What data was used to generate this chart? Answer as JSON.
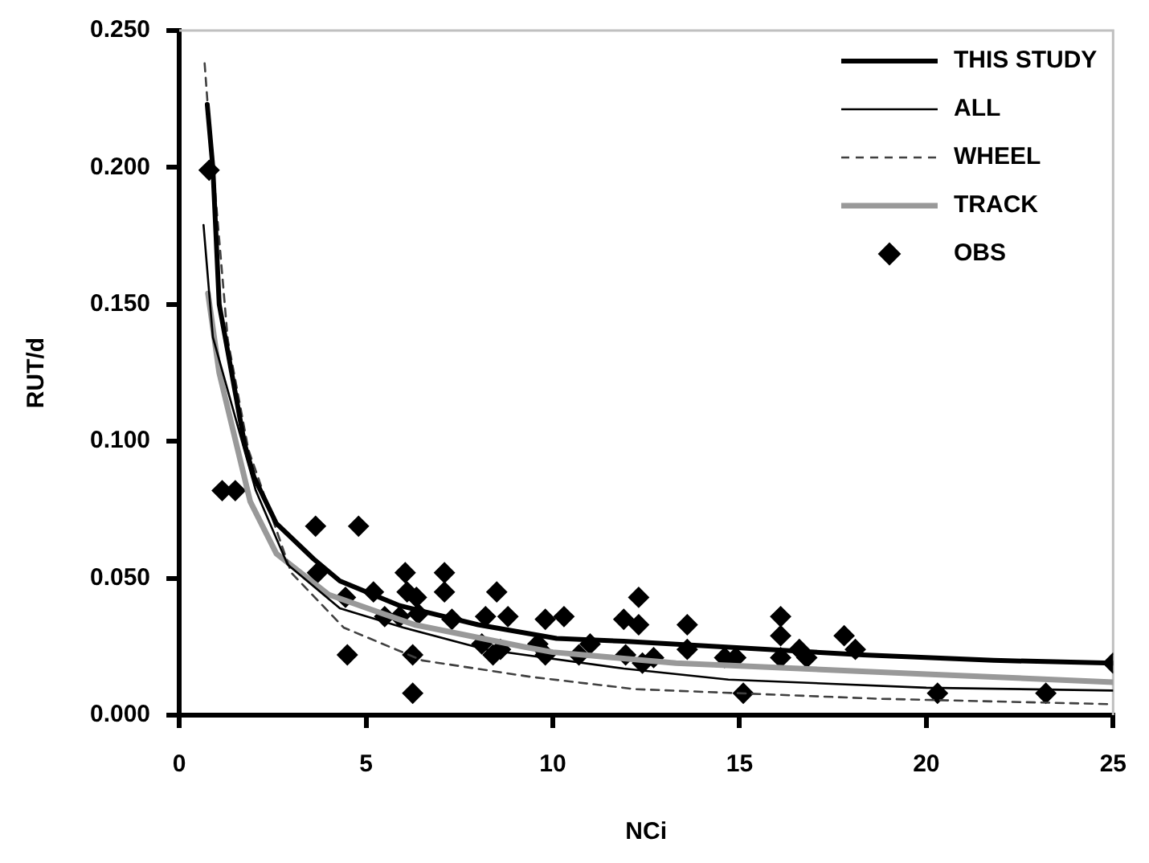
{
  "chart_data": {
    "type": "scatter",
    "xlabel": "NCi",
    "ylabel": "RUT/d",
    "xlim": [
      0,
      25
    ],
    "ylim": [
      0,
      0.25
    ],
    "xticks": [
      0,
      5,
      10,
      15,
      20,
      25
    ],
    "yticks": [
      {
        "value": 0,
        "label": "0.000"
      },
      {
        "value": 0.05,
        "label": "0.050"
      },
      {
        "value": 0.1,
        "label": "0.100"
      },
      {
        "value": 0.15,
        "label": "0.150"
      },
      {
        "value": 0.2,
        "label": "0.200"
      },
      {
        "value": 0.25,
        "label": "0.250"
      }
    ],
    "grid": false,
    "legend": "top right",
    "series": [
      {
        "name": "THIS STUDY",
        "type": "line",
        "color": "#000000",
        "marker": "none",
        "line_style": "solid",
        "x": [
          0.75,
          0.9,
          1.07,
          1.75,
          2.0,
          2.6,
          3.6,
          4.3,
          5.9,
          8.0,
          10.1,
          11.9,
          18.3,
          21.8,
          25
        ],
        "values": [
          0.223,
          0.2,
          0.15,
          0.099,
          0.087,
          0.07,
          0.057,
          0.049,
          0.04,
          0.033,
          0.028,
          0.027,
          0.022,
          0.02,
          0.019
        ]
      },
      {
        "name": "ALL",
        "type": "line",
        "color": "#000000",
        "marker": "none",
        "line_style": "solid",
        "x": [
          0.65,
          0.9,
          2.05,
          2.9,
          4.3,
          6.0,
          8.2,
          11.9,
          14.7,
          20,
          25
        ],
        "values": [
          0.179,
          0.138,
          0.082,
          0.055,
          0.039,
          0.032,
          0.024,
          0.017,
          0.013,
          0.01,
          0.009
        ]
      },
      {
        "name": "WHEEL",
        "type": "line",
        "color": "#404040",
        "marker": "none",
        "line_style": "dashed",
        "x": [
          0.68,
          0.75,
          1.3,
          1.85,
          3.0,
          4.4,
          6.5,
          9.4,
          12.2,
          18.7,
          25
        ],
        "values": [
          0.238,
          0.225,
          0.137,
          0.097,
          0.052,
          0.032,
          0.02,
          0.014,
          0.0095,
          0.006,
          0.004
        ]
      },
      {
        "name": "TRACK",
        "type": "line",
        "color": "#999999",
        "marker": "none",
        "line_style": "solid",
        "x": [
          0.77,
          1.07,
          1.9,
          2.6,
          4.0,
          6.3,
          9.2,
          10,
          13.3,
          20,
          25
        ],
        "values": [
          0.154,
          0.125,
          0.078,
          0.059,
          0.044,
          0.033,
          0.025,
          0.023,
          0.019,
          0.015,
          0.012
        ]
      },
      {
        "name": "OBS",
        "type": "scatter",
        "color": "#000000",
        "marker": "diamond",
        "x": [
          0.8,
          1.15,
          1.5,
          3.65,
          4.8,
          3.7,
          4.45,
          4.5,
          5.2,
          5.5,
          5.9,
          6.05,
          6.1,
          6.35,
          6.4,
          6.25,
          6.25,
          7.1,
          7.1,
          7.3,
          8.1,
          8.4,
          8.6,
          8.2,
          8.5,
          8.8,
          9.6,
          9.8,
          9.8,
          10.3,
          10.7,
          11.0,
          11.9,
          11.95,
          12.3,
          12.3,
          12.4,
          12.7,
          13.6,
          13.6,
          14.6,
          14.9,
          15.1,
          16.1,
          16.1,
          16.1,
          16.6,
          16.8,
          17.8,
          18.1,
          20.3,
          23.2,
          25
        ],
        "values": [
          0.199,
          0.082,
          0.082,
          0.069,
          0.069,
          0.052,
          0.043,
          0.022,
          0.045,
          0.036,
          0.036,
          0.052,
          0.045,
          0.043,
          0.037,
          0.022,
          0.008,
          0.052,
          0.045,
          0.035,
          0.026,
          0.022,
          0.024,
          0.036,
          0.045,
          0.036,
          0.026,
          0.022,
          0.035,
          0.036,
          0.022,
          0.026,
          0.035,
          0.022,
          0.043,
          0.033,
          0.019,
          0.021,
          0.033,
          0.024,
          0.021,
          0.021,
          0.008,
          0.036,
          0.029,
          0.021,
          0.024,
          0.021,
          0.029,
          0.024,
          0.008,
          0.008,
          0.019
        ]
      }
    ]
  }
}
